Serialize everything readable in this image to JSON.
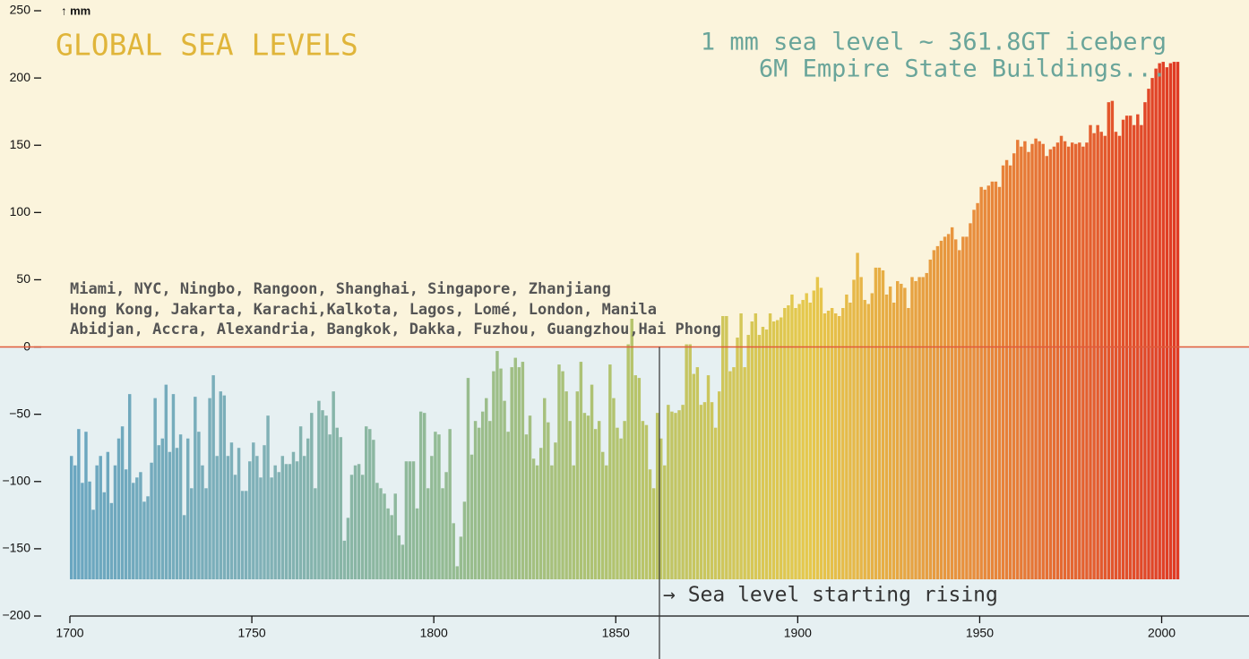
{
  "chart_data": {
    "type": "bar",
    "title": "GLOBAL SEA LEVELS",
    "subtitle": [
      "1 mm sea level ~ 361.8GT iceberg",
      "6M Empire State Buildings..."
    ],
    "y_axis_label": "↑ mm",
    "cities": [
      "Miami, NYC, Ningbo, Rangoon, Shanghai, Singapore, Zhanjiang",
      "Hong Kong, Jakarta, Karachi,Kalkota, Lagos, Lomé, London, Manila",
      "Abidjan, Accra, Alexandria, Bangkok, Dakka, Fuzhou, Guangzhou,Hai Phong"
    ],
    "annotations": [
      {
        "text": "→ Sea level starting rising",
        "x": 1862
      }
    ],
    "colors": [
      "#6aa6c0",
      "#7fb0b8",
      "#93bb94",
      "#b4c46c",
      "#e6c84c",
      "#e8863a",
      "#e03a24"
    ],
    "zero_line_color": "#e05a3a",
    "x": [
      1700,
      1701,
      1702,
      1703,
      1704,
      1705,
      1706,
      1707,
      1708,
      1709,
      1710,
      1711,
      1712,
      1713,
      1714,
      1715,
      1716,
      1717,
      1718,
      1719,
      1720,
      1721,
      1722,
      1723,
      1724,
      1725,
      1726,
      1727,
      1728,
      1729,
      1730,
      1731,
      1732,
      1733,
      1734,
      1735,
      1736,
      1737,
      1738,
      1739,
      1740,
      1741,
      1742,
      1743,
      1744,
      1745,
      1746,
      1747,
      1748,
      1749,
      1750,
      1751,
      1752,
      1753,
      1754,
      1755,
      1756,
      1757,
      1758,
      1759,
      1760,
      1761,
      1762,
      1763,
      1764,
      1765,
      1766,
      1767,
      1768,
      1769,
      1770,
      1771,
      1772,
      1773,
      1774,
      1775,
      1776,
      1777,
      1778,
      1779,
      1780,
      1781,
      1782,
      1783,
      1784,
      1785,
      1786,
      1787,
      1788,
      1789,
      1790,
      1791,
      1792,
      1793,
      1794,
      1795,
      1796,
      1797,
      1798,
      1799,
      1800,
      1801,
      1802,
      1803,
      1804,
      1805,
      1806,
      1807,
      1808,
      1809,
      1810,
      1811,
      1812,
      1813,
      1814,
      1815,
      1816,
      1817,
      1818,
      1819,
      1820,
      1821,
      1822,
      1823,
      1824,
      1825,
      1826,
      1827,
      1828,
      1829,
      1830,
      1831,
      1832,
      1833,
      1834,
      1835,
      1836,
      1837,
      1838,
      1839,
      1840,
      1841,
      1842,
      1843,
      1844,
      1845,
      1846,
      1847,
      1848,
      1849,
      1850,
      1851,
      1852,
      1853,
      1854,
      1855,
      1856,
      1857,
      1858,
      1859,
      1860,
      1861,
      1862,
      1863,
      1864,
      1865,
      1866,
      1867,
      1868,
      1869,
      1870,
      1871,
      1872,
      1873,
      1874,
      1875,
      1876,
      1877,
      1878,
      1879,
      1880,
      1881,
      1882,
      1883,
      1884,
      1885,
      1886,
      1887,
      1888,
      1889,
      1890,
      1891,
      1892,
      1893,
      1894,
      1895,
      1896,
      1897,
      1898,
      1899,
      1900,
      1901,
      1902,
      1903,
      1904,
      1905,
      1906,
      1907,
      1908,
      1909,
      1910,
      1911,
      1912,
      1913,
      1914,
      1915,
      1916,
      1917,
      1918,
      1919,
      1920,
      1921,
      1922,
      1923,
      1924,
      1925,
      1926,
      1927,
      1928,
      1929,
      1930,
      1931,
      1932,
      1933,
      1934,
      1935,
      1936,
      1937,
      1938,
      1939,
      1940,
      1941,
      1942,
      1943,
      1944,
      1945,
      1946,
      1947,
      1948,
      1949,
      1950,
      1951,
      1952,
      1953,
      1954,
      1955,
      1956,
      1957,
      1958,
      1959,
      1960,
      1961,
      1962,
      1963,
      1964,
      1965,
      1966,
      1967,
      1968,
      1969,
      1970,
      1971,
      1972,
      1973,
      1974,
      1975,
      1976,
      1977,
      1978,
      1979,
      1980,
      1981,
      1982,
      1983,
      1984,
      1985,
      1986,
      1987,
      1988,
      1989,
      1990,
      1991,
      1992,
      1993,
      1994,
      1995,
      1996,
      1997,
      1998,
      1999,
      2000,
      2001,
      2002,
      2003,
      2004
    ],
    "values": [
      -81,
      -88,
      -61,
      -101,
      -63,
      -100,
      -121,
      -88,
      -81,
      -108,
      -78,
      -116,
      -88,
      -68,
      -59,
      -91,
      -35,
      -101,
      -97,
      -93,
      -115,
      -111,
      -86,
      -38,
      -73,
      -68,
      -28,
      -78,
      -35,
      -75,
      -65,
      -125,
      -68,
      -105,
      -37,
      -63,
      -88,
      -105,
      -38,
      -21,
      -81,
      -33,
      -36,
      -81,
      -71,
      -95,
      -75,
      -107,
      -107,
      -85,
      -71,
      -81,
      -97,
      -73,
      -51,
      -97,
      -88,
      -93,
      -81,
      -87,
      -87,
      -78,
      -85,
      -59,
      -81,
      -68,
      -49,
      -105,
      -40,
      -47,
      -51,
      -65,
      -33,
      -60,
      -67,
      -144,
      -127,
      -95,
      -88,
      -87,
      -95,
      -59,
      -61,
      -69,
      -101,
      -105,
      -109,
      -120,
      -125,
      -109,
      -140,
      -147,
      -85,
      -85,
      -85,
      -120,
      -48,
      -49,
      -105,
      -81,
      -63,
      -65,
      -105,
      -93,
      -61,
      -131,
      -163,
      -141,
      -115,
      -23,
      -80,
      -55,
      -60,
      -48,
      -38,
      -55,
      -18,
      -3,
      -16,
      -40,
      -63,
      -15,
      -8,
      -15,
      -11,
      -65,
      -51,
      -83,
      -88,
      -75,
      -38,
      -56,
      -88,
      -71,
      -13,
      -18,
      -33,
      -55,
      -88,
      -33,
      -11,
      -49,
      -51,
      -28,
      -61,
      -55,
      -78,
      -88,
      -13,
      -38,
      -60,
      -68,
      -55,
      2,
      21,
      -21,
      -23,
      -55,
      -58,
      -91,
      -105,
      -49,
      -68,
      -88,
      -43,
      -48,
      -49,
      -47,
      -43,
      2,
      2,
      -20,
      -15,
      -43,
      -41,
      -21,
      -41,
      -60,
      -33,
      23,
      23,
      -18,
      -15,
      7,
      25,
      -15,
      9,
      19,
      25,
      9,
      15,
      13,
      25,
      19,
      20,
      22,
      29,
      31,
      39,
      29,
      32,
      35,
      40,
      33,
      42,
      52,
      44,
      25,
      27,
      29,
      25,
      23,
      29,
      39,
      33,
      50,
      70,
      52,
      35,
      32,
      40,
      59,
      59,
      57,
      39,
      45,
      33,
      49,
      47,
      44,
      29,
      52,
      49,
      52,
      52,
      55,
      65,
      72,
      75,
      79,
      82,
      84,
      89,
      80,
      72,
      82,
      82,
      92,
      102,
      107,
      119,
      117,
      120,
      123,
      123,
      119,
      135,
      139,
      135,
      144,
      154,
      149,
      153,
      145,
      151,
      155,
      153,
      151,
      142,
      147,
      149,
      152,
      157,
      153,
      149,
      152,
      151,
      152,
      149,
      152,
      165,
      159,
      165,
      160,
      157,
      182,
      183,
      160,
      157,
      169,
      172,
      172,
      165,
      173,
      165,
      182,
      192,
      200,
      207,
      211,
      212,
      208,
      211,
      212,
      212
    ],
    "xlim": [
      1700,
      2024
    ],
    "xticks": [
      1700,
      1750,
      1800,
      1850,
      1900,
      1950,
      2000
    ],
    "ylim": [
      -200,
      250
    ],
    "yticks": [
      {
        "value": -200,
        "label": "−200"
      },
      {
        "value": -150,
        "label": "−150"
      },
      {
        "value": -100,
        "label": "−100"
      },
      {
        "value": -50,
        "label": "−50"
      },
      0,
      50,
      100,
      150,
      200,
      250
    ]
  }
}
